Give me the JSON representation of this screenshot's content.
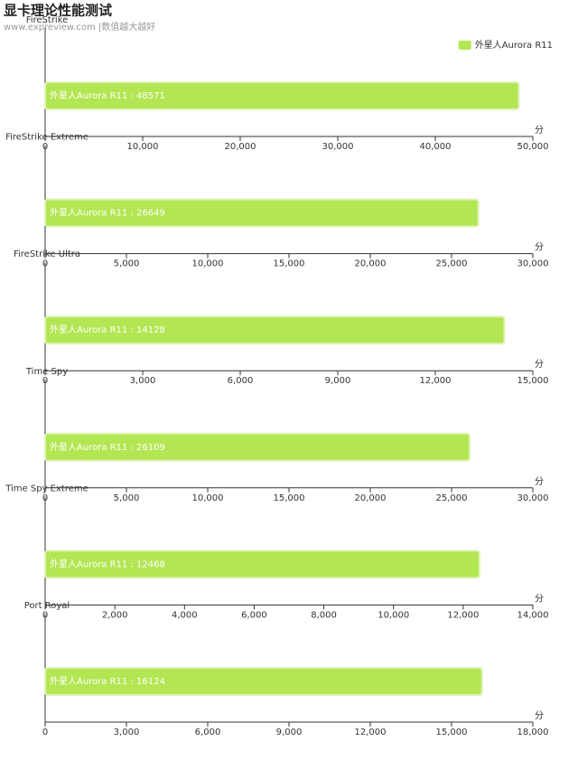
{
  "title": "显卡理论性能测试",
  "subtitle": "www.expreview.com |数值越大越好",
  "chart_data": [
    {
      "type": "bar",
      "orientation": "horizontal",
      "title": "FireStrike",
      "x_label": "分",
      "legend": "top-right",
      "series": [
        {
          "name": "外星人Aurora R11",
          "color": "#b3e653",
          "values": [
            48571
          ],
          "value_labels": [
            "外星人Aurora R11 : 48571"
          ]
        }
      ],
      "xlim": [
        0,
        50000
      ],
      "xticks": [
        0,
        {
          "value": 10000,
          "label": "10,000"
        },
        {
          "value": 20000,
          "label": "20,000"
        },
        {
          "value": 30000,
          "label": "30,000"
        },
        {
          "value": 40000,
          "label": "40,000"
        },
        {
          "value": 50000,
          "label": "50,000"
        }
      ]
    },
    {
      "type": "bar",
      "orientation": "horizontal",
      "title": "FireStrike Extreme",
      "x_label": "分",
      "series": [
        {
          "name": "外星人Aurora R11",
          "color": "#b3e653",
          "values": [
            26649
          ],
          "value_labels": [
            "外星人Aurora R11 : 26649"
          ]
        }
      ],
      "xlim": [
        0,
        30000
      ],
      "xticks": [
        0,
        {
          "value": 5000,
          "label": "5,000"
        },
        {
          "value": 10000,
          "label": "10,000"
        },
        {
          "value": 15000,
          "label": "15,000"
        },
        {
          "value": 20000,
          "label": "20,000"
        },
        {
          "value": 25000,
          "label": "25,000"
        },
        {
          "value": 30000,
          "label": "30,000"
        }
      ]
    },
    {
      "type": "bar",
      "orientation": "horizontal",
      "title": "FireStrike Ultra",
      "x_label": "分",
      "series": [
        {
          "name": "外星人Aurora R11",
          "color": "#b3e653",
          "values": [
            14128
          ],
          "value_labels": [
            "外星人Aurora R11 : 14128"
          ]
        }
      ],
      "xlim": [
        0,
        15000
      ],
      "xticks": [
        0,
        {
          "value": 3000,
          "label": "3,000"
        },
        {
          "value": 6000,
          "label": "6,000"
        },
        {
          "value": 9000,
          "label": "9,000"
        },
        {
          "value": 12000,
          "label": "12,000"
        },
        {
          "value": 15000,
          "label": "15,000"
        }
      ]
    },
    {
      "type": "bar",
      "orientation": "horizontal",
      "title": "Time Spy",
      "x_label": "分",
      "series": [
        {
          "name": "外星人Aurora R11",
          "color": "#b3e653",
          "values": [
            26109
          ],
          "value_labels": [
            "外星人Aurora R11 : 26109"
          ]
        }
      ],
      "xlim": [
        0,
        30000
      ],
      "xticks": [
        0,
        {
          "value": 5000,
          "label": "5,000"
        },
        {
          "value": 10000,
          "label": "10,000"
        },
        {
          "value": 15000,
          "label": "15,000"
        },
        {
          "value": 20000,
          "label": "20,000"
        },
        {
          "value": 25000,
          "label": "25,000"
        },
        {
          "value": 30000,
          "label": "30,000"
        }
      ]
    },
    {
      "type": "bar",
      "orientation": "horizontal",
      "title": "Time Spy Extreme",
      "x_label": "分",
      "series": [
        {
          "name": "外星人Aurora R11",
          "color": "#b3e653",
          "values": [
            12468
          ],
          "value_labels": [
            "外星人Aurora R11 : 12468"
          ]
        }
      ],
      "xlim": [
        0,
        14000
      ],
      "xticks": [
        0,
        {
          "value": 2000,
          "label": "2,000"
        },
        {
          "value": 4000,
          "label": "4,000"
        },
        {
          "value": 6000,
          "label": "6,000"
        },
        {
          "value": 8000,
          "label": "8,000"
        },
        {
          "value": 10000,
          "label": "10,000"
        },
        {
          "value": 12000,
          "label": "12,000"
        },
        {
          "value": 14000,
          "label": "14,000"
        }
      ]
    },
    {
      "type": "bar",
      "orientation": "horizontal",
      "title": "Port Royal",
      "x_label": "分",
      "series": [
        {
          "name": "外星人Aurora R11",
          "color": "#b3e653",
          "values": [
            16124
          ],
          "value_labels": [
            "外星人Aurora R11 : 16124"
          ]
        }
      ],
      "xlim": [
        0,
        18000
      ],
      "xticks": [
        0,
        {
          "value": 3000,
          "label": "3,000"
        },
        {
          "value": 6000,
          "label": "6,000"
        },
        {
          "value": 9000,
          "label": "9,000"
        },
        {
          "value": 12000,
          "label": "12,000"
        },
        {
          "value": 15000,
          "label": "15,000"
        },
        {
          "value": 18000,
          "label": "18,000"
        }
      ]
    }
  ]
}
